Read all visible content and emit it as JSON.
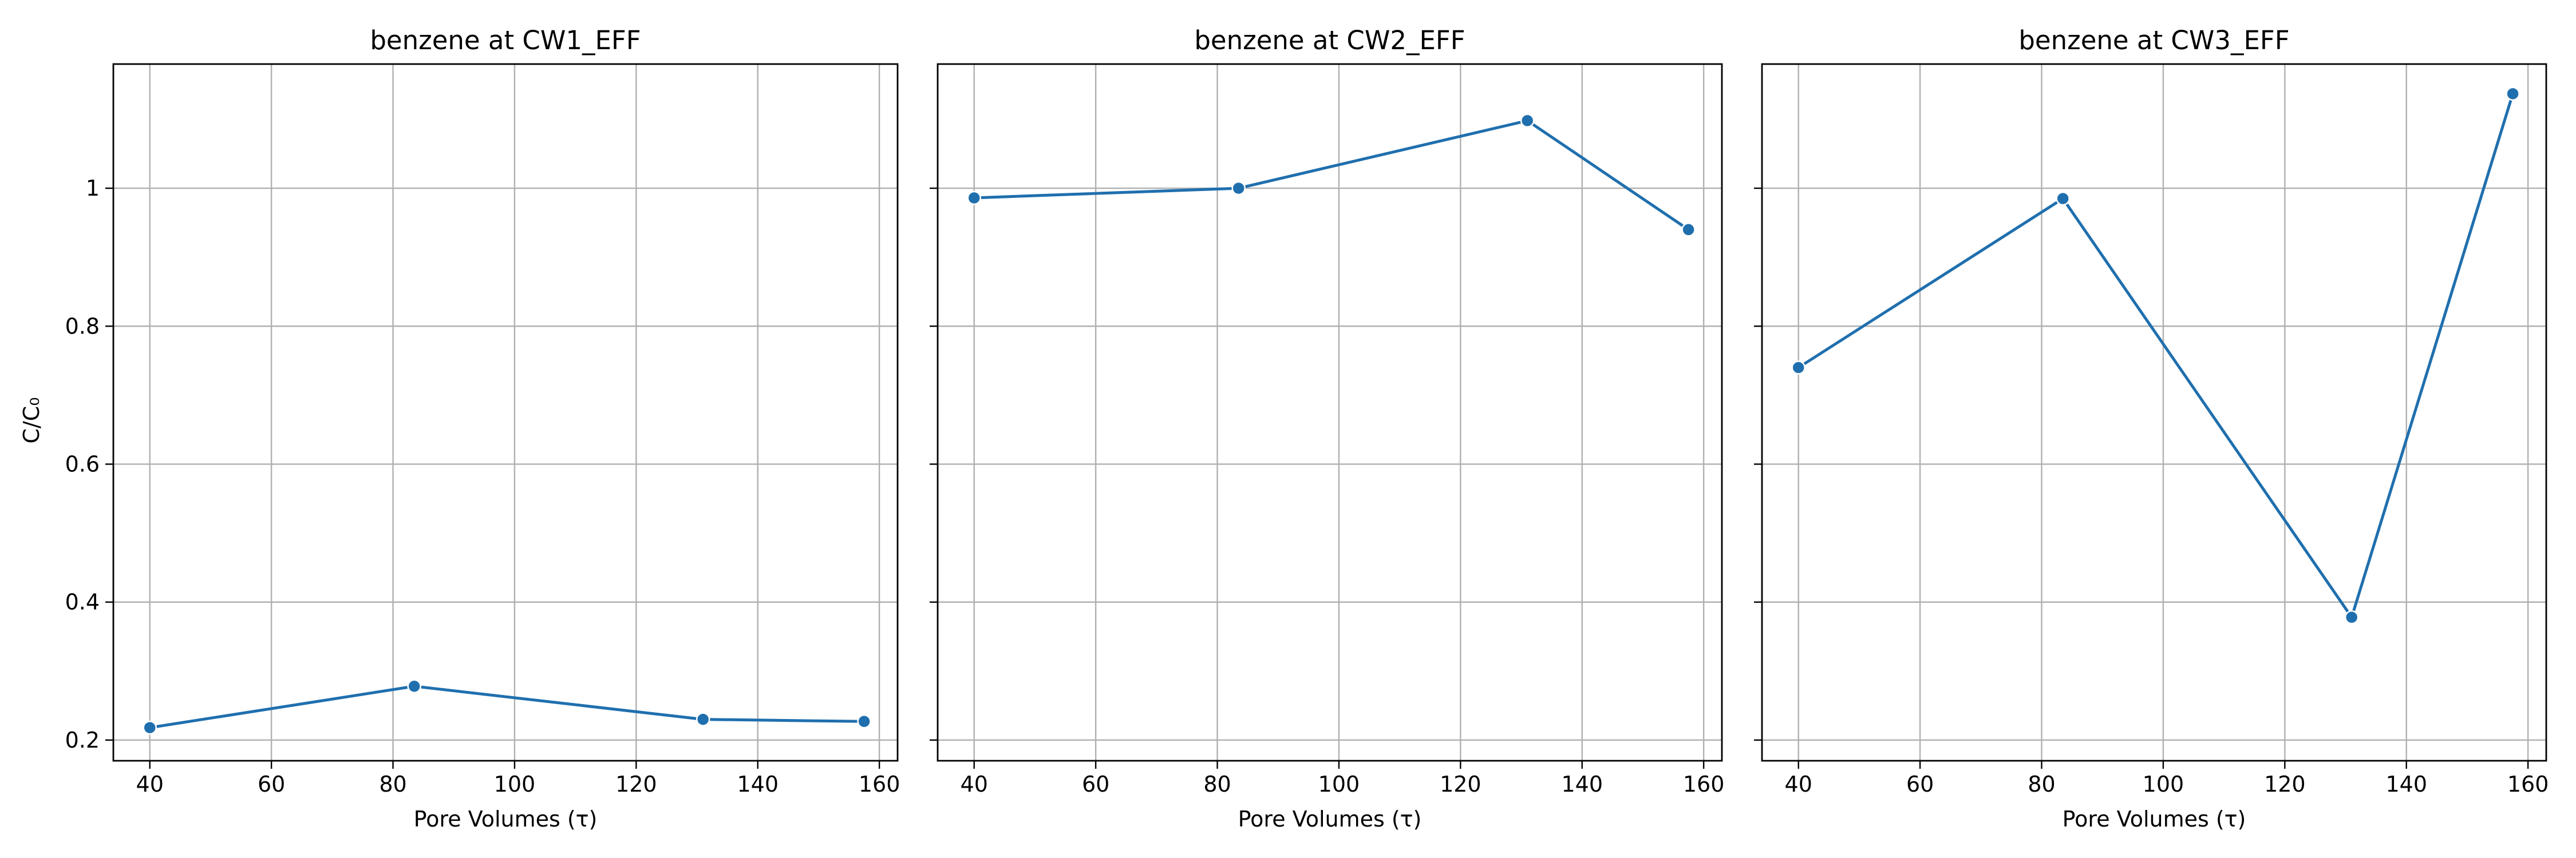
{
  "figure": {
    "ylabel": "C/C₀",
    "xlabel": "Pore Volumes (τ)",
    "line_color": "#1f6fae",
    "grid_color": "#b0b0b0"
  },
  "chart_data": [
    {
      "type": "line",
      "title": "benzene at CW1_EFF",
      "xlabel": "Pore Volumes (τ)",
      "ylabel": "C/C₀",
      "x": [
        40,
        83.5,
        131,
        157.5
      ],
      "y": [
        0.218,
        0.278,
        0.23,
        0.227
      ],
      "xlim": [
        34,
        163
      ],
      "ylim": [
        0.17,
        1.18
      ],
      "xticks": [
        40,
        60,
        80,
        100,
        120,
        140,
        160
      ],
      "yticks": [
        0.2,
        0.4,
        0.6,
        0.8,
        1.0
      ],
      "grid": true
    },
    {
      "type": "line",
      "title": "benzene at CW2_EFF",
      "xlabel": "Pore Volumes (τ)",
      "ylabel": "",
      "x": [
        40,
        83.5,
        131,
        157.5
      ],
      "y": [
        0.986,
        1.0,
        1.098,
        0.94
      ],
      "xlim": [
        34,
        163
      ],
      "ylim": [
        0.17,
        1.18
      ],
      "xticks": [
        40,
        60,
        80,
        100,
        120,
        140,
        160
      ],
      "yticks": [
        0.2,
        0.4,
        0.6,
        0.8,
        1.0
      ],
      "grid": true
    },
    {
      "type": "line",
      "title": "benzene at CW3_EFF",
      "xlabel": "Pore Volumes (τ)",
      "ylabel": "",
      "x": [
        40,
        83.5,
        131,
        157.5
      ],
      "y": [
        0.74,
        0.985,
        0.378,
        1.137
      ],
      "xlim": [
        34,
        163
      ],
      "ylim": [
        0.17,
        1.18
      ],
      "xticks": [
        40,
        60,
        80,
        100,
        120,
        140,
        160
      ],
      "yticks": [
        0.2,
        0.4,
        0.6,
        0.8,
        1.0
      ],
      "grid": true
    }
  ]
}
